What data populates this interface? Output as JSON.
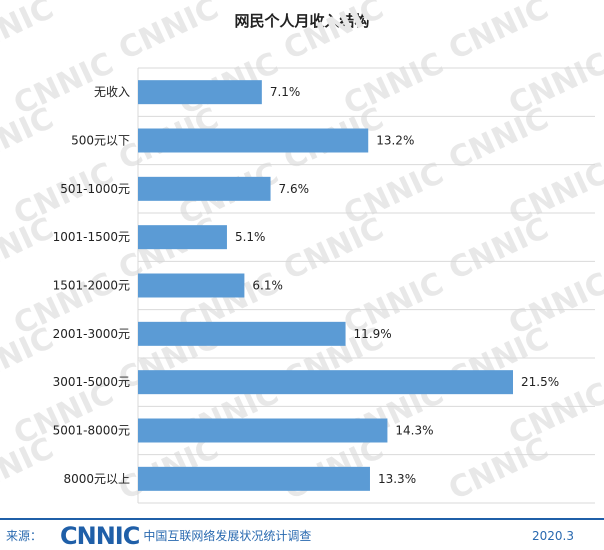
{
  "chart_data": {
    "type": "bar",
    "orientation": "horizontal",
    "title": "网民个人月收入结构",
    "categories": [
      "无收入",
      "500元以下",
      "501-1000元",
      "1001-1500元",
      "1501-2000元",
      "2001-3000元",
      "3001-5000元",
      "5001-8000元",
      "8000元以上"
    ],
    "values": [
      7.1,
      13.2,
      7.6,
      5.1,
      6.1,
      11.9,
      21.5,
      14.3,
      13.3
    ],
    "value_labels": [
      "7.1%",
      "13.2%",
      "7.6%",
      "5.1%",
      "6.1%",
      "11.9%",
      "21.5%",
      "14.3%",
      "13.3%"
    ],
    "xlim": [
      0,
      21.5
    ],
    "grid": true,
    "bar_color": "#5b9bd5"
  },
  "watermark": {
    "text": "CNNIC"
  },
  "footer": {
    "source_label": "来源：",
    "logo_text": "CNNIC",
    "org_name": "中国互联网络发展状况统计调查",
    "date": "2020.3"
  }
}
